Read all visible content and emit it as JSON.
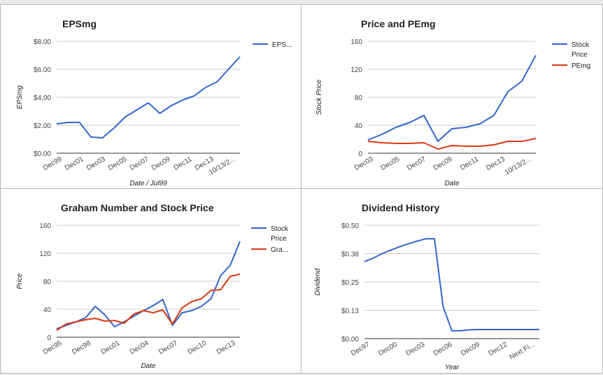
{
  "chart_data": [
    {
      "type": "line",
      "title": "EPSmg",
      "xlabel": "Date / Jul99",
      "ylabel": "EPSmg",
      "ylim": [
        0,
        8
      ],
      "yticks": [
        "$0.00",
        "$2.00",
        "$4.00",
        "$6.00",
        "$8.00"
      ],
      "xticklabels": [
        "Dec99",
        "Dec01",
        "Dec03",
        "Dec05",
        "Dec07",
        "Dec09",
        "Dec11",
        "Dec13",
        "10/13/2..."
      ],
      "legend_position": "right",
      "grid": true,
      "series": [
        {
          "name": "EPS...",
          "color": "#3366cc",
          "values": [
            2.1,
            2.2,
            2.2,
            1.15,
            1.1,
            1.8,
            2.6,
            3.1,
            3.6,
            2.85,
            3.4,
            3.8,
            4.1,
            4.7,
            5.1,
            6.0,
            6.9
          ]
        }
      ]
    },
    {
      "type": "line",
      "title": "Price and PEmg",
      "xlabel": "Date",
      "ylabel": "Stock Price",
      "ylim": [
        0,
        160
      ],
      "yticks": [
        "0",
        "40",
        "80",
        "120",
        "160"
      ],
      "xticklabels": [
        "Dec03",
        "Dec05",
        "Dec07",
        "Dec09",
        "Dec11",
        "Dec13",
        "10/13/2..."
      ],
      "legend_position": "right",
      "grid": true,
      "series": [
        {
          "name": "Stock Price",
          "color": "#3366cc",
          "values": [
            19,
            27,
            37,
            44,
            54,
            17,
            35,
            37,
            42,
            54,
            88,
            103,
            140
          ]
        },
        {
          "name": "PEmg",
          "color": "#dc3912",
          "values": [
            17,
            15,
            14,
            14,
            15,
            6,
            11,
            10,
            10,
            12,
            17,
            17,
            21
          ]
        }
      ]
    },
    {
      "type": "line",
      "title": "Graham Number and Stock Price",
      "xlabel": "Date",
      "ylabel": "Price",
      "ylim": [
        0,
        160
      ],
      "yticks": [
        "0",
        "40",
        "80",
        "120",
        "160"
      ],
      "xticklabels": [
        "Dec95",
        "Dec98",
        "Dec01",
        "Dec04",
        "Dec07",
        "Dec10",
        "Dec13"
      ],
      "legend_position": "right",
      "grid": true,
      "series": [
        {
          "name": "Stock Price",
          "color": "#3366cc",
          "values": [
            12,
            17,
            22,
            28,
            44,
            32,
            15,
            22,
            30,
            38,
            45,
            54,
            17,
            35,
            38,
            44,
            55,
            88,
            103,
            137
          ]
        },
        {
          "name": "Gra...",
          "color": "#dc3912",
          "values": [
            10,
            19,
            22,
            25,
            27,
            23,
            24,
            20,
            33,
            38,
            35,
            39,
            19,
            42,
            51,
            55,
            67,
            68,
            87,
            90
          ]
        }
      ]
    },
    {
      "type": "line",
      "title": "Dividend History",
      "xlabel": "Year",
      "ylabel": "Dividend",
      "ylim": [
        0,
        0.5
      ],
      "yticks": [
        "$0.00",
        "$0.13",
        "$0.25",
        "$0.38",
        "$0.50"
      ],
      "xticklabels": [
        "Dec97",
        "Dec00",
        "Dec03",
        "Dec06",
        "Dec09",
        "Dec12",
        "Next Fi..."
      ],
      "legend_position": "none",
      "grid": true,
      "series": [
        {
          "color": "#3366cc",
          "values": [
            0.34,
            0.355,
            0.375,
            0.39,
            0.405,
            0.418,
            0.43,
            0.44,
            0.441,
            0.14,
            0.035,
            0.035,
            0.039,
            0.04,
            0.04,
            0.04,
            0.04,
            0.04,
            0.04,
            0.04,
            0.04
          ]
        }
      ]
    }
  ]
}
